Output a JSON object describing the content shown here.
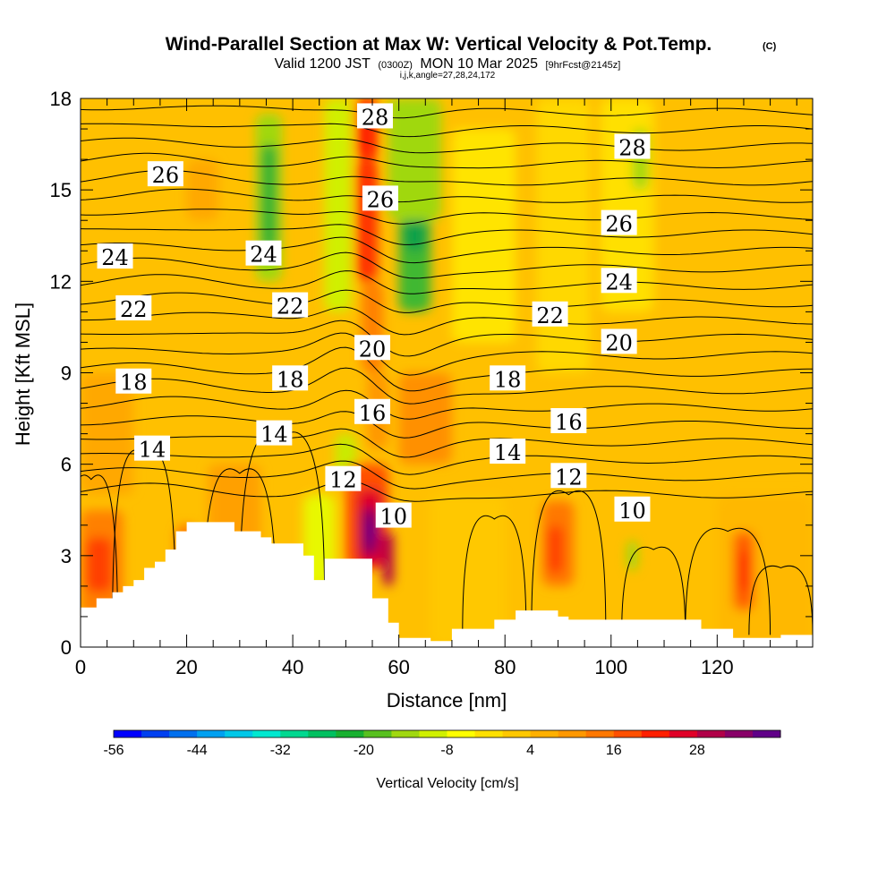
{
  "chart_data": {
    "type": "heatmap",
    "title": {
      "main": "Wind-Parallel Section at Max W: Vertical Velocity & Pot.Temp.",
      "copyright": "(C)",
      "valid_prefix": "Valid 1200 JST",
      "valid_zulu": "(0300Z)",
      "valid_date": "MON 10 Mar 2025",
      "forecast": "[9hrFcst@2145z]",
      "indices": "i,j,k,angle=27,28,24,172"
    },
    "xlabel": "Distance [nm]",
    "ylabel": "Height [Kft MSL]",
    "xlim": [
      0,
      138
    ],
    "ylim": [
      0,
      18
    ],
    "x_ticks": [
      "0",
      "20",
      "40",
      "60",
      "80",
      "100",
      "120"
    ],
    "y_ticks": [
      "0",
      "3",
      "6",
      "9",
      "12",
      "15",
      "18"
    ],
    "colorbar": {
      "label": "Vertical Velocity [cm/s]",
      "tick_labels": [
        "-56",
        "-44",
        "-32",
        "-20",
        "-8",
        "4",
        "16",
        "28"
      ],
      "colors": [
        "#0000ff",
        "#0040f0",
        "#0070ee",
        "#00a0f0",
        "#00c8e8",
        "#00e8d0",
        "#00d890",
        "#00c060",
        "#18b030",
        "#58c020",
        "#a0d810",
        "#d0f000",
        "#ffff00",
        "#ffe000",
        "#ffc800",
        "#ffb000",
        "#ff9800",
        "#ff7800",
        "#ff5000",
        "#ff2000",
        "#e00028",
        "#b00048",
        "#880068",
        "#600088"
      ]
    },
    "contour_labels": [
      {
        "text": "28",
        "x": 55.5,
        "y": 17.4
      },
      {
        "text": "28",
        "x": 104,
        "y": 16.4
      },
      {
        "text": "26",
        "x": 16,
        "y": 15.5
      },
      {
        "text": "26",
        "x": 56.5,
        "y": 14.7
      },
      {
        "text": "26",
        "x": 101.5,
        "y": 13.9
      },
      {
        "text": "24",
        "x": 6.5,
        "y": 12.8
      },
      {
        "text": "24",
        "x": 34.5,
        "y": 12.9
      },
      {
        "text": "24",
        "x": 101.5,
        "y": 12.0
      },
      {
        "text": "22",
        "x": 10,
        "y": 11.1
      },
      {
        "text": "22",
        "x": 39.5,
        "y": 11.2
      },
      {
        "text": "22",
        "x": 88.5,
        "y": 10.9
      },
      {
        "text": "20",
        "x": 55,
        "y": 9.8
      },
      {
        "text": "20",
        "x": 101.5,
        "y": 10.0
      },
      {
        "text": "18",
        "x": 10,
        "y": 8.7
      },
      {
        "text": "18",
        "x": 39.5,
        "y": 8.8
      },
      {
        "text": "18",
        "x": 80.5,
        "y": 8.8
      },
      {
        "text": "16",
        "x": 55,
        "y": 7.7
      },
      {
        "text": "16",
        "x": 92,
        "y": 7.4
      },
      {
        "text": "14",
        "x": 13.5,
        "y": 6.5
      },
      {
        "text": "14",
        "x": 36.5,
        "y": 7.0
      },
      {
        "text": "14",
        "x": 80.5,
        "y": 6.4
      },
      {
        "text": "12",
        "x": 49.5,
        "y": 5.5
      },
      {
        "text": "12",
        "x": 92,
        "y": 5.6
      },
      {
        "text": "10",
        "x": 59,
        "y": 4.3
      },
      {
        "text": "10",
        "x": 104,
        "y": 4.5
      }
    ]
  }
}
